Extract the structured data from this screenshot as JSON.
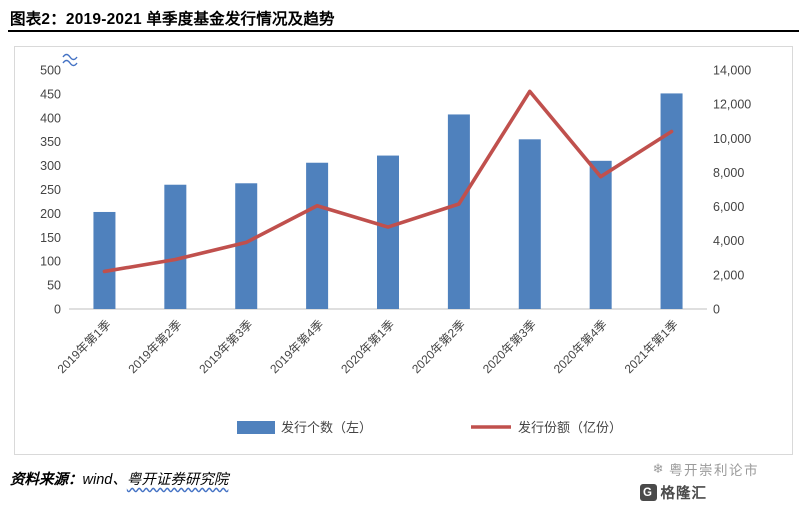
{
  "header": {
    "title": "图表2：2019-2021 单季度基金发行情况及趋势"
  },
  "chart_data": {
    "type": "combo-bar-line",
    "title": "2019-2021 单季度基金发行情况及趋势",
    "categories": [
      "2019年第1季",
      "2019年第2季",
      "2019年第3季",
      "2019年第4季",
      "2020年第1季",
      "2020年第2季",
      "2020年第3季",
      "2020年第4季",
      "2021年第1季"
    ],
    "series": [
      {
        "name": "发行个数（左）",
        "chart": "bar",
        "axis": "left",
        "color": "#4F81BD",
        "values": [
          203,
          260,
          263,
          306,
          321,
          407,
          355,
          310,
          451
        ]
      },
      {
        "name": "发行份额（亿份）",
        "chart": "line",
        "axis": "right",
        "color": "#C0504D",
        "values": [
          2200,
          2900,
          3900,
          6050,
          4800,
          6150,
          12750,
          7750,
          10400
        ]
      }
    ],
    "left_axis": {
      "min": 0,
      "max": 500,
      "step": 50,
      "ticks": [
        "500",
        "450",
        "400",
        "350",
        "300",
        "250",
        "200",
        "150",
        "100",
        "50",
        "0"
      ]
    },
    "right_axis": {
      "min": 0,
      "max": 14000,
      "step": 2000,
      "ticks": [
        "14,000",
        "12,000",
        "10,000",
        "8,000",
        "6,000",
        "4,000",
        "2,000",
        "0"
      ]
    },
    "legend": [
      {
        "label": "发行个数（左）",
        "swatch": "bar",
        "color": "#4F81BD"
      },
      {
        "label": "发行份额（亿份）",
        "swatch": "line",
        "color": "#C0504D"
      }
    ],
    "legend_position": "bottom",
    "grid": false
  },
  "footer": {
    "source_label": "资料来源：",
    "source_wind": "wind、",
    "source_org": "粤开证券研究院"
  },
  "watermark": {
    "brand_text": "粤开崇利论市",
    "logo_letter": "G",
    "logo_text": "格隆汇"
  }
}
